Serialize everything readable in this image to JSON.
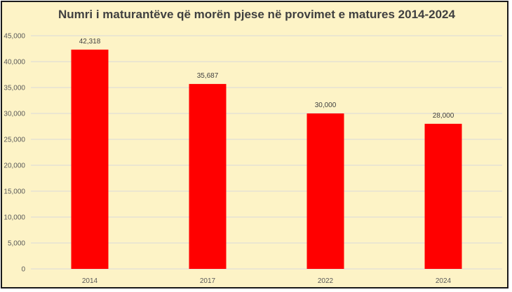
{
  "colors": {
    "background": "#fdf3c6",
    "bar": "#ff0000",
    "gridline": "#d9d9d9",
    "frame": "#1a1a1a"
  },
  "chart_data": {
    "type": "bar",
    "title": "Numri i maturantëve që morën pjese në provimet e matures 2014-2024",
    "xlabel": "",
    "ylabel": "",
    "categories": [
      "2014",
      "2017",
      "2022",
      "2024"
    ],
    "values": [
      42318,
      35687,
      30000,
      28000
    ],
    "data_labels": [
      "42,318",
      "35,687",
      "30,000",
      "28,000"
    ],
    "ylim": [
      0,
      45000
    ],
    "yticks": [
      0,
      5000,
      10000,
      15000,
      20000,
      25000,
      30000,
      35000,
      40000,
      45000
    ],
    "ytick_labels": [
      "0",
      "5,000",
      "10,000",
      "15,000",
      "20,000",
      "25,000",
      "30,000",
      "35,000",
      "40,000",
      "45,000"
    ],
    "grid": true,
    "legend": "none"
  }
}
